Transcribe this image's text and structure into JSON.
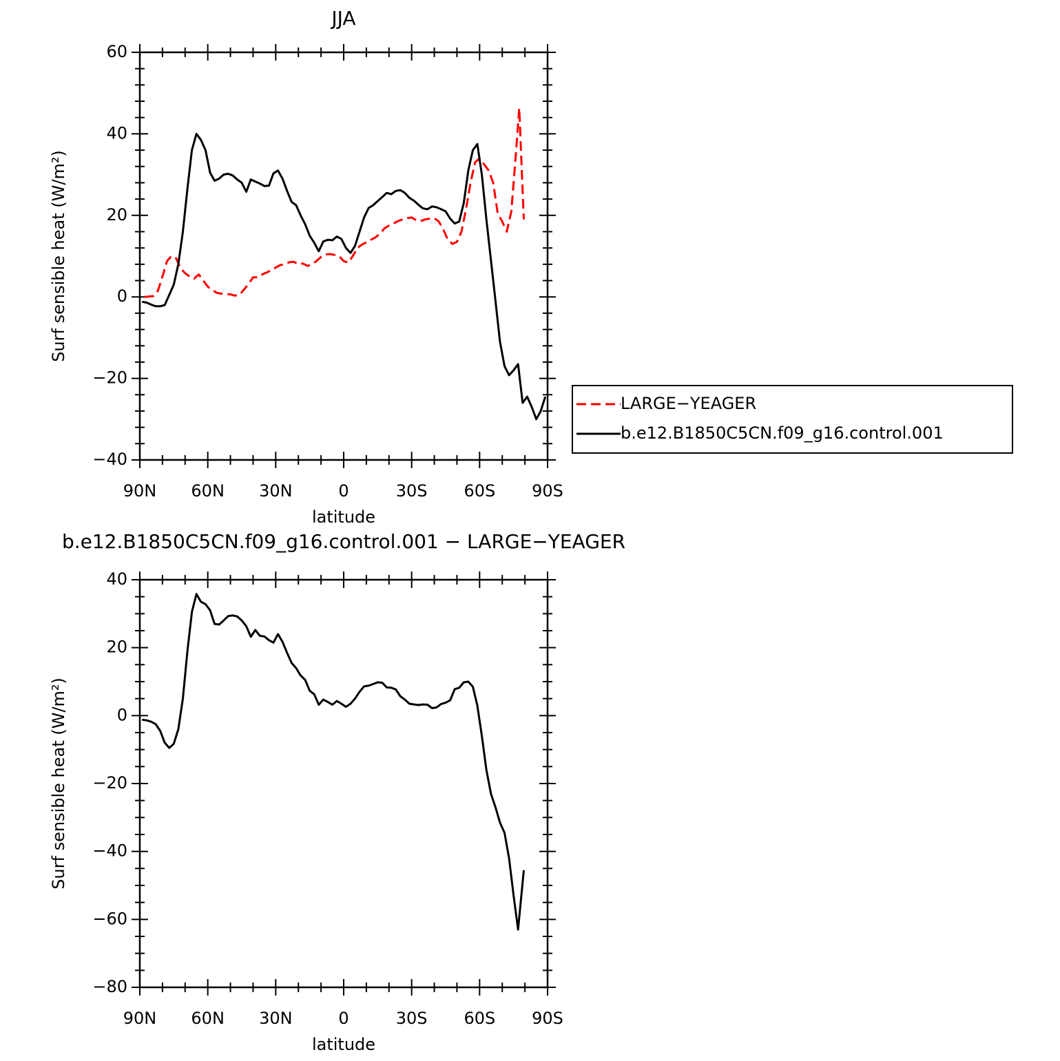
{
  "chart_data": [
    {
      "type": "line",
      "title": "JJA",
      "xlabel": "latitude",
      "ylabel": "Surf sensible heat (W/m²)",
      "xlim": [
        90,
        -90
      ],
      "xticks": [
        {
          "value": 90,
          "label": "90N"
        },
        {
          "value": 60,
          "label": "60N"
        },
        {
          "value": 30,
          "label": "30N"
        },
        0,
        {
          "value": -30,
          "label": "30S"
        },
        {
          "value": -60,
          "label": "60S"
        },
        {
          "value": -90,
          "label": "90S"
        }
      ],
      "xminorticks": [
        80,
        70,
        50,
        40,
        20,
        10,
        -10,
        -20,
        -40,
        -50,
        -70,
        -80
      ],
      "ylim": [
        -40,
        60
      ],
      "yticks": [
        {
          "value": -40,
          "label": "−40"
        },
        {
          "value": -20,
          "label": "−20"
        },
        0,
        20,
        40,
        60
      ],
      "yminorticks": [
        -36,
        -32,
        -28,
        -24,
        -16,
        -12,
        -8,
        -4,
        4,
        8,
        12,
        16,
        24,
        28,
        32,
        36,
        44,
        48,
        52,
        56
      ],
      "legend": "right",
      "series": [
        {
          "name": "LARGE−YEAGER",
          "color": "#ff0000",
          "dash": "dashed",
          "x": [
            88,
            86,
            84,
            82,
            80,
            78,
            76,
            74,
            72,
            70,
            68,
            66,
            64,
            62,
            60,
            58,
            56,
            54,
            52,
            50,
            48,
            46,
            44,
            42,
            40,
            38,
            36,
            34,
            32,
            30,
            28,
            26,
            24,
            22,
            20,
            18,
            16,
            14,
            12,
            10,
            8,
            6,
            4,
            2,
            0,
            -2,
            -4,
            -6,
            -8,
            -10,
            -12,
            -14,
            -16,
            -18,
            -20,
            -22,
            -24,
            -26,
            -28,
            -30,
            -32,
            -34,
            -36,
            -38,
            -40,
            -42,
            -44,
            -46,
            -48,
            -50,
            -52,
            -54,
            -56,
            -58,
            -60,
            -62,
            -64,
            -66,
            -68,
            -70,
            -72,
            -74,
            -76,
            -77.5,
            -79.5
          ],
          "values": [
            0,
            0.1,
            0.2,
            1.5,
            5,
            8.8,
            10,
            9.5,
            7,
            5.8,
            5,
            4.5,
            5.5,
            4,
            2.5,
            1.7,
            1,
            0.8,
            0.7,
            0.6,
            0.3,
            0.5,
            1.8,
            3.2,
            4.8,
            4.8,
            5.5,
            6,
            6.5,
            7.2,
            7.8,
            8,
            8.5,
            8.6,
            8,
            8.2,
            7.6,
            8,
            8.8,
            9.8,
            10.4,
            10.5,
            10.3,
            10,
            8.8,
            8.4,
            10,
            12,
            12.8,
            13.4,
            14,
            14.6,
            15.5,
            16.8,
            17.5,
            18,
            18.6,
            19,
            19.3,
            19.5,
            18.8,
            18.6,
            19,
            19.2,
            19.3,
            18.5,
            16.5,
            14,
            13,
            13.5,
            16,
            21.5,
            28,
            33,
            34,
            32.5,
            31,
            28,
            20.5,
            18.5,
            16,
            21,
            35,
            46.3,
            19
          ]
        },
        {
          "name": "b.e12.B1850C5CN.f09_g16.control.001",
          "color": "#000000",
          "dash": "solid",
          "x": [
            89,
            87,
            85,
            83,
            81,
            79,
            77,
            75,
            73,
            71,
            69,
            67,
            65,
            63,
            61,
            59,
            57,
            55,
            53,
            51,
            49,
            47,
            45,
            43,
            41,
            39,
            37,
            35,
            33,
            31,
            29,
            27,
            25,
            23,
            21,
            19,
            17,
            15,
            13,
            11,
            9,
            7,
            5,
            3,
            1,
            -1,
            -3,
            -5,
            -7,
            -9,
            -11,
            -13,
            -15,
            -17,
            -19,
            -21,
            -23,
            -25,
            -27,
            -29,
            -31,
            -33,
            -35,
            -37,
            -39,
            -41,
            -43,
            -45,
            -47,
            -49,
            -51,
            -53,
            -55,
            -57,
            -59,
            -61,
            -63,
            -65,
            -67,
            -69,
            -71,
            -73,
            -75,
            -77,
            -79,
            -81,
            -83,
            -85,
            -87,
            -89
          ],
          "values": [
            -1.2,
            -1.4,
            -1.9,
            -2.3,
            -2.3,
            -2,
            0.5,
            3,
            8,
            16,
            26.5,
            36,
            40,
            38.5,
            36,
            30.5,
            28.5,
            29,
            30,
            30.2,
            29.8,
            28.8,
            28,
            25.8,
            28.8,
            28.3,
            27.8,
            27.2,
            27.3,
            30.3,
            31,
            29,
            26,
            23.3,
            22.5,
            20,
            17.8,
            15,
            13.3,
            11.2,
            13.6,
            14,
            13.9,
            14.8,
            14.2,
            12,
            10.8,
            12.5,
            16,
            19.5,
            21.8,
            22.5,
            23.5,
            24.5,
            25.5,
            25.2,
            26,
            26.2,
            25.5,
            24.3,
            23.6,
            22.6,
            21.7,
            21.5,
            22.2,
            22,
            21.5,
            21,
            19.2,
            18,
            18.5,
            23,
            31,
            36,
            37.5,
            30,
            19,
            9,
            -1,
            -11,
            -17,
            -19.2,
            -18,
            -16.5,
            -26,
            -24.5,
            -27,
            -30,
            -28,
            -24.5
          ]
        }
      ]
    },
    {
      "type": "line",
      "title": "b.e12.B1850C5CN.f09_g16.control.001 − LARGE−YEAGER",
      "xlabel": "latitude",
      "ylabel": "Surf sensible heat (W/m²)",
      "xlim": [
        90,
        -90
      ],
      "xticks": [
        {
          "value": 90,
          "label": "90N"
        },
        {
          "value": 60,
          "label": "60N"
        },
        {
          "value": 30,
          "label": "30N"
        },
        0,
        {
          "value": -30,
          "label": "30S"
        },
        {
          "value": -60,
          "label": "60S"
        },
        {
          "value": -90,
          "label": "90S"
        }
      ],
      "xminorticks": [
        80,
        70,
        50,
        40,
        20,
        10,
        -10,
        -20,
        -40,
        -50,
        -70,
        -80
      ],
      "ylim": [
        -80,
        40
      ],
      "yticks": [
        {
          "value": -80,
          "label": "−80"
        },
        {
          "value": -60,
          "label": "−60"
        },
        {
          "value": -40,
          "label": "−40"
        },
        {
          "value": -20,
          "label": "−20"
        },
        0,
        20,
        40
      ],
      "yminorticks": [
        -75,
        -70,
        -65,
        -55,
        -50,
        -45,
        -35,
        -30,
        -25,
        -15,
        -10,
        -5,
        5,
        10,
        15,
        25,
        30,
        35
      ],
      "series": [
        {
          "color": "#000000",
          "dash": "solid",
          "x": [
            89,
            87,
            85,
            83,
            81,
            79,
            77,
            75,
            73,
            71,
            69,
            67,
            65,
            63,
            61,
            59,
            57,
            55,
            53,
            51,
            49,
            47,
            45,
            43,
            41,
            39,
            37,
            35,
            33,
            31,
            29,
            27,
            25,
            23,
            21,
            19,
            17,
            15,
            13,
            11,
            9,
            7,
            5,
            3,
            1,
            -1,
            -3,
            -5,
            -7,
            -9,
            -11,
            -13,
            -15,
            -17,
            -19,
            -21,
            -23,
            -25,
            -27,
            -29,
            -31,
            -33,
            -35,
            -37,
            -39,
            -41,
            -43,
            -45,
            -47,
            -49,
            -51,
            -53,
            -55,
            -57,
            -59,
            -61,
            -63,
            -65,
            -67,
            -69,
            -71,
            -73,
            -75,
            -77,
            -79.5
          ],
          "values": [
            -1.2,
            -1.4,
            -1.8,
            -2.5,
            -4.5,
            -8,
            -9.5,
            -8.3,
            -4,
            5,
            19,
            30.5,
            35.8,
            33.5,
            32.8,
            31,
            27,
            26.8,
            28,
            29.3,
            29.5,
            29.2,
            28,
            26.3,
            23.2,
            25.2,
            23.5,
            23.3,
            22.2,
            21.5,
            24,
            21.7,
            18.5,
            15.5,
            14,
            11.8,
            10.5,
            7.3,
            6.3,
            3.2,
            4.7,
            4,
            3.2,
            4.3,
            3.5,
            2.6,
            3.5,
            5,
            7,
            8.6,
            8.8,
            9.3,
            9.8,
            9.7,
            8.3,
            8.2,
            7.7,
            5.7,
            4.7,
            3.5,
            3.3,
            3.1,
            3.3,
            3.2,
            2.2,
            2.4,
            3.4,
            3.8,
            4.5,
            7.8,
            8.2,
            9.8,
            10,
            8.5,
            3,
            -6,
            -16,
            -23,
            -27,
            -31.5,
            -34.5,
            -42,
            -53,
            -63,
            -45.5
          ]
        }
      ]
    }
  ]
}
